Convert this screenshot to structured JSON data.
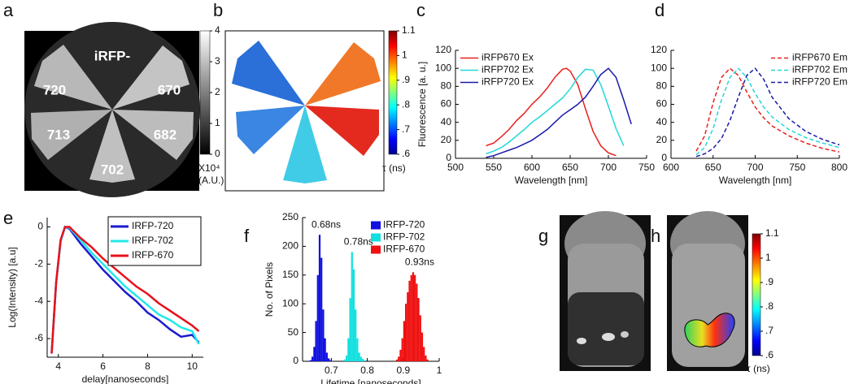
{
  "panel_labels": [
    "a",
    "b",
    "c",
    "d",
    "e",
    "f",
    "g",
    "h"
  ],
  "panel_a": {
    "labels": [
      "iRFP-",
      "720",
      "670",
      "713",
      "682",
      "702"
    ],
    "colorbar": {
      "lim": [
        0,
        4
      ],
      "ticks": [
        0,
        1,
        2,
        3,
        4
      ],
      "label": [
        "X10⁴",
        "(A.U.)"
      ]
    }
  },
  "panel_b": {
    "colorbar": {
      "lim": [
        0.6,
        1.1
      ],
      "ticks": [
        {
          "value": 0.6,
          "label": ".6"
        },
        {
          "value": 0.7,
          "label": ".7"
        },
        {
          "value": 0.8,
          "label": ".8"
        },
        {
          "value": 0.9,
          "label": ".9"
        },
        1,
        1.1
      ],
      "label": "τ (ns)"
    }
  },
  "panel_h": {
    "colorbar": {
      "lim": [
        0.6,
        1.1
      ],
      "ticks": [
        {
          "value": 0.6,
          "label": ".6"
        },
        {
          "value": 0.7,
          "label": ".7"
        },
        {
          "value": 0.8,
          "label": ".8"
        },
        {
          "value": 0.9,
          "label": ".9"
        },
        1,
        1.1
      ],
      "label": "τ (ns)"
    }
  },
  "chart_data": [
    {
      "type": "line",
      "x_label": "Wavelength [nm]",
      "y_label": "Fluorescence [a. u.]",
      "xlim": [
        500,
        750
      ],
      "xticks": [
        500,
        550,
        600,
        650,
        700,
        750
      ],
      "ylim": [
        0,
        120
      ],
      "yticks": [
        0,
        20,
        40,
        60,
        80,
        100,
        120
      ],
      "legend": "upper left",
      "line_style": "solid",
      "series": [
        {
          "name": "iRFP670 Ex",
          "color": "#e8201c",
          "x": [
            540,
            550,
            560,
            570,
            580,
            590,
            600,
            610,
            620,
            630,
            640,
            645,
            650,
            660,
            670,
            680,
            690,
            700,
            710
          ],
          "values": [
            14,
            17,
            24,
            32,
            42,
            50,
            60,
            68,
            78,
            90,
            99,
            100,
            97,
            82,
            55,
            30,
            14,
            6,
            3
          ]
        },
        {
          "name": "iRFP702 Ex",
          "color": "#22d8d8",
          "x": [
            540,
            550,
            560,
            570,
            580,
            590,
            600,
            610,
            620,
            630,
            640,
            650,
            660,
            670,
            680,
            690,
            700,
            710,
            720
          ],
          "values": [
            5,
            8,
            12,
            18,
            25,
            32,
            40,
            46,
            53,
            60,
            67,
            77,
            90,
            99,
            98,
            82,
            58,
            33,
            14
          ]
        },
        {
          "name": "iRFP720 Ex",
          "color": "#1a1aa8",
          "x": [
            540,
            550,
            560,
            570,
            580,
            590,
            600,
            610,
            620,
            630,
            640,
            650,
            660,
            670,
            680,
            690,
            700,
            710,
            720,
            730
          ],
          "values": [
            1,
            3,
            6,
            9,
            12,
            16,
            20,
            26,
            32,
            40,
            48,
            54,
            60,
            68,
            80,
            93,
            100,
            90,
            65,
            38
          ]
        }
      ]
    },
    {
      "type": "line",
      "x_label": "Wavelength [nm]",
      "xlim": [
        600,
        800
      ],
      "xticks": [
        600,
        650,
        700,
        750,
        800
      ],
      "ylim": [
        0,
        120
      ],
      "yticks": [
        0,
        20,
        40,
        60,
        80,
        100,
        120
      ],
      "legend": "upper right",
      "line_style": "dashed",
      "series": [
        {
          "name": "iRFP670 Em",
          "color": "#e8201c",
          "x": [
            630,
            640,
            650,
            660,
            670,
            680,
            690,
            700,
            710,
            720,
            740,
            760,
            780,
            800
          ],
          "values": [
            8,
            25,
            62,
            90,
            100,
            92,
            74,
            57,
            45,
            36,
            25,
            17,
            11,
            7
          ]
        },
        {
          "name": "iRFP702 Em",
          "color": "#22d8d8",
          "x": [
            630,
            640,
            650,
            660,
            670,
            680,
            690,
            700,
            710,
            720,
            740,
            760,
            780,
            800
          ],
          "values": [
            4,
            12,
            33,
            65,
            90,
            100,
            90,
            72,
            57,
            46,
            32,
            23,
            17,
            12
          ]
        },
        {
          "name": "iRFP720 Em",
          "color": "#1a1aa8",
          "x": [
            630,
            640,
            650,
            660,
            670,
            680,
            690,
            700,
            710,
            720,
            740,
            760,
            780,
            800
          ],
          "values": [
            2,
            5,
            11,
            22,
            42,
            68,
            92,
            100,
            88,
            68,
            44,
            30,
            21,
            15
          ]
        }
      ]
    },
    {
      "type": "line",
      "x_label": "delay[nanoseconds]",
      "y_label": "Log(Intensity) [a.u]",
      "xlim": [
        3.5,
        10.5
      ],
      "xticks": [
        4,
        6,
        8,
        10
      ],
      "ylim": [
        -7,
        0.5
      ],
      "yticks": [
        0,
        -2,
        -4,
        -6
      ],
      "legend": "upper right",
      "legend_frame": true,
      "line_style": "solid",
      "x": [
        3.7,
        3.9,
        4.1,
        4.3,
        4.5,
        5,
        5.5,
        6,
        6.5,
        7,
        7.5,
        8,
        8.5,
        9,
        9.5,
        10,
        10.3
      ],
      "series": [
        {
          "name": "IRFP-720",
          "color": "#1a1ad0",
          "values": [
            -6.8,
            -3,
            -0.8,
            0,
            -0.1,
            -0.9,
            -1.6,
            -2.3,
            -2.9,
            -3.5,
            -4.0,
            -4.6,
            -5.0,
            -5.5,
            -5.9,
            -5.8,
            -6.2
          ]
        },
        {
          "name": "IRFP-702",
          "color": "#22e8e8",
          "values": [
            -6.8,
            -3,
            -0.8,
            0,
            -0.05,
            -0.7,
            -1.4,
            -2.0,
            -2.6,
            -3.2,
            -3.7,
            -4.2,
            -4.7,
            -5.0,
            -5.4,
            -5.6,
            -6.3
          ]
        },
        {
          "name": "IRFP-670",
          "color": "#e8101c",
          "values": [
            -6.8,
            -3,
            -0.7,
            0,
            0,
            -0.6,
            -1.1,
            -1.7,
            -2.2,
            -2.7,
            -3.2,
            -3.6,
            -4.1,
            -4.5,
            -4.9,
            -5.3,
            -5.6
          ]
        }
      ]
    },
    {
      "type": "histogram",
      "x_label": "Lifetime [nanoseconds]",
      "y_label": "No. of Pixels",
      "xlim": [
        0.62,
        1.0
      ],
      "xticks": [
        0.7,
        0.8,
        0.9,
        1
      ],
      "ylim": [
        0,
        250
      ],
      "yticks": [
        0,
        50,
        100,
        150,
        200,
        250
      ],
      "legend": "upper right",
      "annotations": [
        "0.68ns",
        "0.78ns",
        "0.93ns"
      ],
      "series": [
        {
          "name": "IRFP-720",
          "color": "#1010e0",
          "bins": [
            0.64,
            0.645,
            0.65,
            0.655,
            0.66,
            0.665,
            0.67,
            0.675,
            0.68,
            0.685,
            0.69,
            0.695,
            0.7
          ],
          "values": [
            2,
            8,
            25,
            70,
            150,
            220,
            180,
            90,
            40,
            15,
            5,
            2
          ]
        },
        {
          "name": "IRFP-702",
          "color": "#10e0e0",
          "bins": [
            0.735,
            0.74,
            0.745,
            0.75,
            0.755,
            0.76,
            0.765,
            0.77,
            0.775,
            0.78,
            0.785,
            0.79,
            0.795
          ],
          "values": [
            3,
            10,
            40,
            110,
            190,
            160,
            90,
            40,
            15,
            8,
            4,
            2
          ]
        },
        {
          "name": "IRFP-670",
          "color": "#f01010",
          "bins": [
            0.88,
            0.885,
            0.89,
            0.895,
            0.9,
            0.905,
            0.91,
            0.915,
            0.92,
            0.925,
            0.93,
            0.935,
            0.94,
            0.945,
            0.95,
            0.955,
            0.96,
            0.965,
            0.97
          ],
          "values": [
            3,
            8,
            20,
            40,
            70,
            100,
            120,
            140,
            150,
            155,
            150,
            135,
            110,
            80,
            50,
            25,
            10,
            3
          ]
        }
      ]
    }
  ]
}
